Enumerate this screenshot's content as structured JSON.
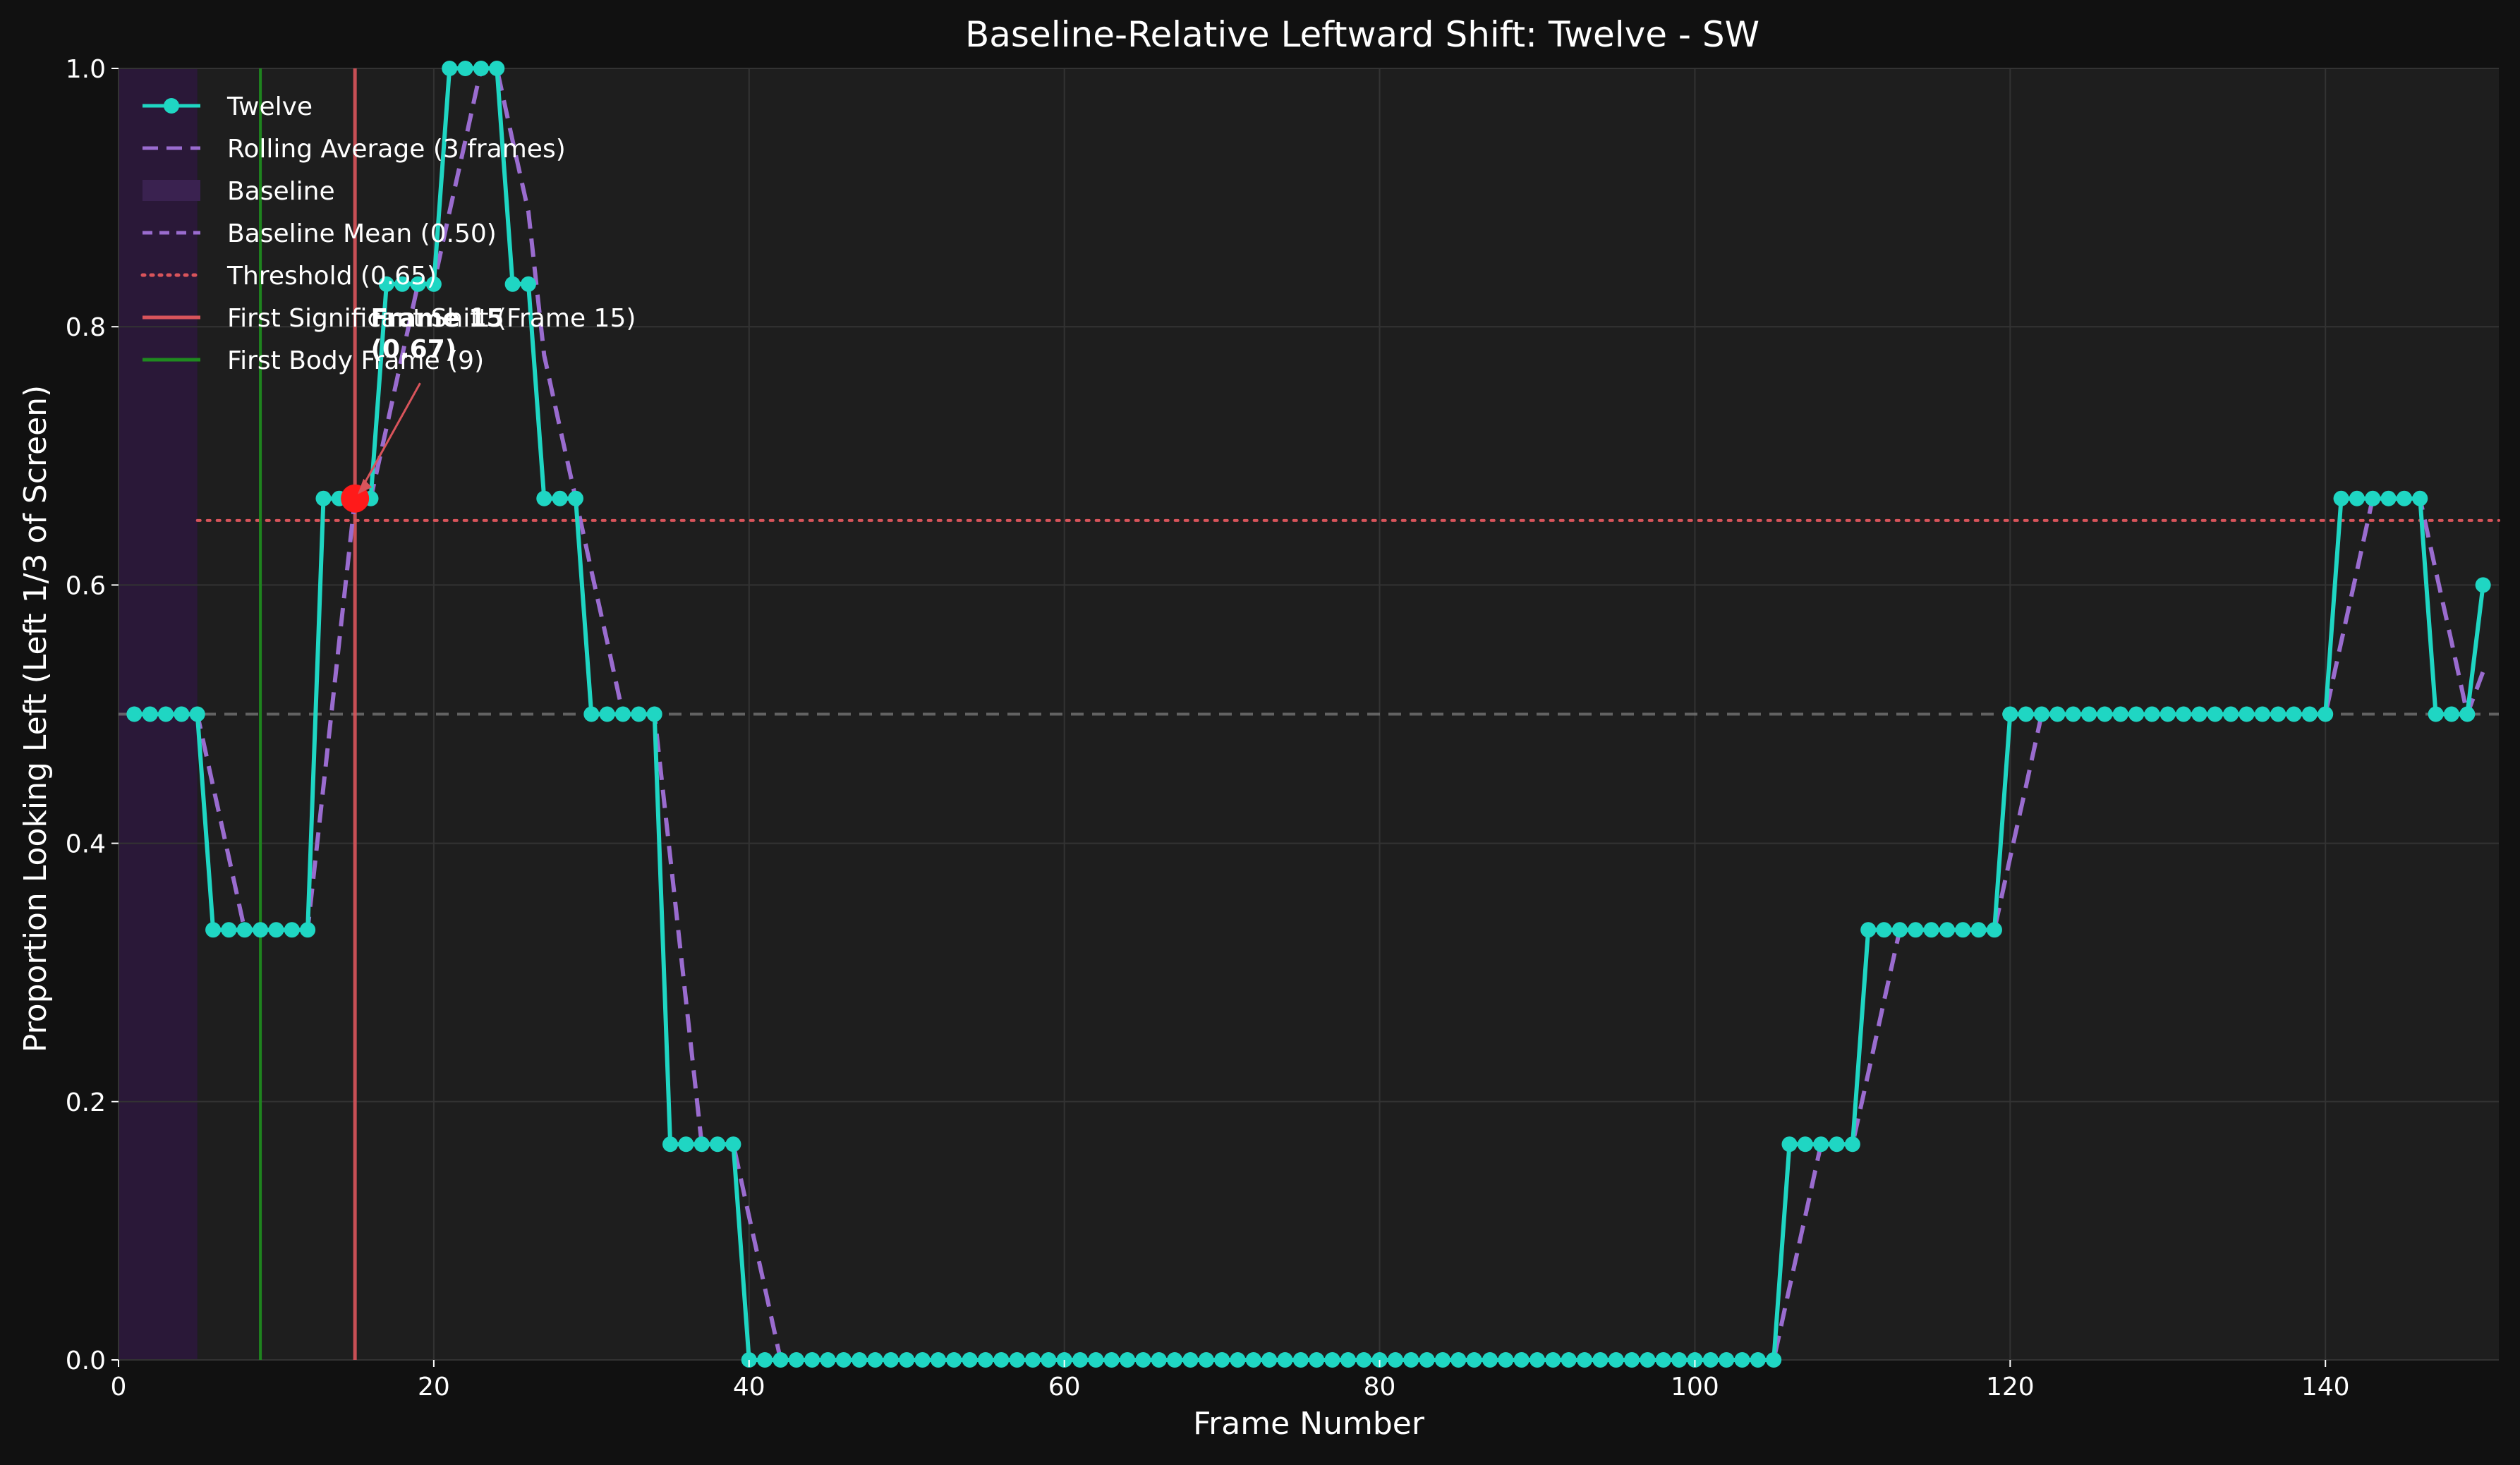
{
  "colors": {
    "background": "#111111",
    "plot_background": "#1e1e1e",
    "grid": "#333333",
    "series": "#1fd6c3",
    "rolling": "#9a6ccf",
    "baseline_region": "#2a1838",
    "baseline_mean": "#9a6ccf",
    "reference_line": "#7a7a7a",
    "threshold": "#d9545b",
    "shift_line": "#d9545b",
    "body_line": "#1f8a1f",
    "marker": "#ff1a1a",
    "text": "#ffffff"
  },
  "chart_data": {
    "type": "line",
    "title": "Baseline-Relative Leftward Shift: Twelve - SW",
    "xlabel": "Frame Number",
    "ylabel": "Proportion Looking Left (Left 1/3 of Screen)",
    "xlim": [
      0,
      151
    ],
    "ylim": [
      0,
      1.0
    ],
    "xticks": [
      0,
      20,
      40,
      60,
      80,
      100,
      120,
      140
    ],
    "yticks": [
      0.0,
      0.2,
      0.4,
      0.6,
      0.8,
      1.0
    ],
    "grid": true,
    "legend_position": "upper-left",
    "series": [
      {
        "name": "Twelve",
        "style": "solid-markers",
        "x": [
          1,
          2,
          3,
          4,
          5,
          6,
          7,
          8,
          9,
          10,
          11,
          12,
          13,
          14,
          15,
          16,
          17,
          18,
          19,
          20,
          21,
          22,
          23,
          24,
          25,
          26,
          27,
          28,
          29,
          30,
          31,
          32,
          33,
          34,
          35,
          36,
          37,
          38,
          39,
          40,
          41,
          42,
          43,
          44,
          45,
          46,
          47,
          48,
          49,
          50,
          51,
          52,
          53,
          54,
          55,
          56,
          57,
          58,
          59,
          60,
          61,
          62,
          63,
          64,
          65,
          66,
          67,
          68,
          69,
          70,
          71,
          72,
          73,
          74,
          75,
          76,
          77,
          78,
          79,
          80,
          81,
          82,
          83,
          84,
          85,
          86,
          87,
          88,
          89,
          90,
          91,
          92,
          93,
          94,
          95,
          96,
          97,
          98,
          99,
          100,
          101,
          102,
          103,
          104,
          105,
          106,
          107,
          108,
          109,
          110,
          111,
          112,
          113,
          114,
          115,
          116,
          117,
          118,
          119,
          120,
          121,
          122,
          123,
          124,
          125,
          126,
          127,
          128,
          129,
          130,
          131,
          132,
          133,
          134,
          135,
          136,
          137,
          138,
          139,
          140,
          141,
          142,
          143,
          144,
          145,
          146,
          147,
          148,
          149,
          150
        ],
        "y": [
          0.5,
          0.5,
          0.5,
          0.5,
          0.5,
          0.333,
          0.333,
          0.333,
          0.333,
          0.333,
          0.333,
          0.333,
          0.667,
          0.667,
          0.667,
          0.667,
          0.833,
          0.833,
          0.833,
          0.833,
          1.0,
          1.0,
          1.0,
          1.0,
          0.833,
          0.833,
          0.667,
          0.667,
          0.667,
          0.5,
          0.5,
          0.5,
          0.5,
          0.5,
          0.167,
          0.167,
          0.167,
          0.167,
          0.167,
          0,
          0,
          0,
          0,
          0,
          0,
          0,
          0,
          0,
          0,
          0,
          0,
          0,
          0,
          0,
          0,
          0,
          0,
          0,
          0,
          0,
          0,
          0,
          0,
          0,
          0,
          0,
          0,
          0,
          0,
          0,
          0,
          0,
          0,
          0,
          0,
          0,
          0,
          0,
          0,
          0,
          0,
          0,
          0,
          0,
          0,
          0,
          0,
          0,
          0,
          0,
          0,
          0,
          0,
          0,
          0,
          0,
          0,
          0,
          0,
          0,
          0,
          0,
          0,
          0,
          0,
          0.167,
          0.167,
          0.167,
          0.167,
          0.167,
          0.333,
          0.333,
          0.333,
          0.333,
          0.333,
          0.333,
          0.333,
          0.333,
          0.333,
          0.5,
          0.5,
          0.5,
          0.5,
          0.5,
          0.5,
          0.5,
          0.5,
          0.5,
          0.5,
          0.5,
          0.5,
          0.5,
          0.5,
          0.5,
          0.5,
          0.5,
          0.5,
          0.5,
          0.5,
          0.5,
          0.667,
          0.667,
          0.667,
          0.667,
          0.667,
          0.667,
          0.5,
          0.5,
          0.5,
          0.6
        ]
      },
      {
        "name": "Rolling Average (3 frames)",
        "style": "dashed",
        "x": [
          3,
          4,
          5,
          6,
          7,
          8,
          9,
          10,
          11,
          12,
          13,
          14,
          15,
          16,
          17,
          18,
          19,
          20,
          21,
          22,
          23,
          24,
          25,
          26,
          27,
          28,
          29,
          30,
          31,
          32,
          33,
          34,
          35,
          36,
          37,
          38,
          39,
          40,
          41,
          42,
          43,
          44,
          45,
          46,
          47,
          48,
          49,
          50,
          51,
          52,
          53,
          54,
          55,
          56,
          57,
          58,
          59,
          60,
          61,
          62,
          63,
          64,
          65,
          66,
          67,
          68,
          69,
          70,
          71,
          72,
          73,
          74,
          75,
          76,
          77,
          78,
          79,
          80,
          81,
          82,
          83,
          84,
          85,
          86,
          87,
          88,
          89,
          90,
          91,
          92,
          93,
          94,
          95,
          96,
          97,
          98,
          99,
          100,
          101,
          102,
          103,
          104,
          105,
          106,
          107,
          108,
          109,
          110,
          111,
          112,
          113,
          114,
          115,
          116,
          117,
          118,
          119,
          120,
          121,
          122,
          123,
          124,
          125,
          126,
          127,
          128,
          129,
          130,
          131,
          132,
          133,
          134,
          135,
          136,
          137,
          138,
          139,
          140,
          141,
          142,
          143,
          144,
          145,
          146,
          147,
          148,
          149,
          150
        ],
        "y": [
          0.5,
          0.5,
          0.5,
          0.444,
          0.389,
          0.333,
          0.333,
          0.333,
          0.333,
          0.333,
          0.444,
          0.556,
          0.667,
          0.667,
          0.722,
          0.778,
          0.833,
          0.833,
          0.889,
          0.944,
          1.0,
          1.0,
          0.944,
          0.889,
          0.778,
          0.722,
          0.667,
          0.611,
          0.556,
          0.5,
          0.5,
          0.5,
          0.389,
          0.278,
          0.167,
          0.167,
          0.167,
          0.111,
          0.056,
          0,
          0,
          0,
          0,
          0,
          0,
          0,
          0,
          0,
          0,
          0,
          0,
          0,
          0,
          0,
          0,
          0,
          0,
          0,
          0,
          0,
          0,
          0,
          0,
          0,
          0,
          0,
          0,
          0,
          0,
          0,
          0,
          0,
          0,
          0,
          0,
          0,
          0,
          0,
          0,
          0,
          0,
          0,
          0,
          0,
          0,
          0,
          0,
          0,
          0,
          0,
          0,
          0,
          0,
          0,
          0,
          0,
          0,
          0,
          0,
          0,
          0,
          0,
          0,
          0.056,
          0.111,
          0.167,
          0.167,
          0.167,
          0.222,
          0.278,
          0.333,
          0.333,
          0.333,
          0.333,
          0.333,
          0.333,
          0.333,
          0.389,
          0.444,
          0.5,
          0.5,
          0.5,
          0.5,
          0.5,
          0.5,
          0.5,
          0.5,
          0.5,
          0.5,
          0.5,
          0.5,
          0.5,
          0.5,
          0.5,
          0.5,
          0.5,
          0.5,
          0.5,
          0.556,
          0.611,
          0.667,
          0.667,
          0.667,
          0.667,
          0.611,
          0.556,
          0.5,
          0.533
        ]
      }
    ],
    "baseline_region": {
      "name": "Baseline",
      "x_start": 0,
      "x_end": 5
    },
    "reference_lines": [
      {
        "name": "Baseline Mean (0.50)",
        "orientation": "horizontal",
        "value": 0.5,
        "x_start": 0,
        "style": "dashed"
      },
      {
        "name": "Threshold (0.65)",
        "orientation": "horizontal",
        "value": 0.65,
        "x_start": 5,
        "style": "dotted"
      },
      {
        "name": "First Significant Shift (Frame 15)",
        "orientation": "vertical",
        "value": 15,
        "style": "solid"
      },
      {
        "name": "First Body Frame (9)",
        "orientation": "vertical",
        "value": 9,
        "style": "solid"
      }
    ],
    "highlight_point": {
      "x": 15,
      "y": 0.667
    },
    "annotation": {
      "lines": [
        "Frame 15",
        "(0.67)"
      ],
      "text_x": 16,
      "text_y": 0.8
    }
  }
}
